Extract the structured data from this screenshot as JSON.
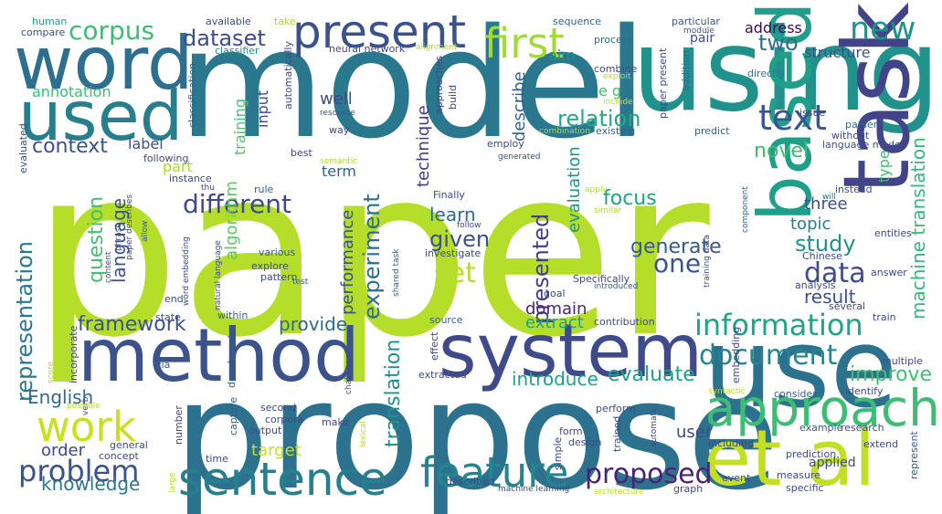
{
  "word_cloud": {
    "words": [
      {
        "text": "paper",
        "color": "#b5de2b"
      },
      {
        "text": "model",
        "color": "#2a788e"
      },
      {
        "text": "propose",
        "color": "#2c728e"
      },
      {
        "text": "using",
        "color": "#21918c"
      },
      {
        "text": "use",
        "color": "#2c728e"
      },
      {
        "text": "method",
        "color": "#3b528b"
      },
      {
        "text": "system",
        "color": "#3e4a89"
      },
      {
        "text": "word",
        "color": "#2e6e8e"
      },
      {
        "text": "used",
        "color": "#277f8e"
      },
      {
        "text": "task",
        "color": "#414487"
      },
      {
        "text": "based",
        "color": "#1f9e89"
      },
      {
        "text": "et al",
        "color": "#c2df23"
      },
      {
        "text": "approach",
        "color": "#3dbc74"
      },
      {
        "text": "sentence",
        "color": "#277f8e"
      },
      {
        "text": "feature",
        "color": "#25848e"
      },
      {
        "text": "present",
        "color": "#3b528b"
      },
      {
        "text": "first",
        "color": "#a2da37"
      },
      {
        "text": "new",
        "color": "#21918c"
      },
      {
        "text": "text",
        "color": "#39568c"
      },
      {
        "text": "work",
        "color": "#c8e020"
      },
      {
        "text": "information",
        "color": "#20a486"
      },
      {
        "text": "problem",
        "color": "#3b528b"
      },
      {
        "text": "proposed",
        "color": "#482475"
      },
      {
        "text": "data",
        "color": "#3e4c8a"
      },
      {
        "text": "document",
        "color": "#25848e"
      },
      {
        "text": "framework",
        "color": "#3b528b"
      },
      {
        "text": "corpus",
        "color": "#3dbc74"
      },
      {
        "text": "dataset",
        "color": "#3e4c8a"
      },
      {
        "text": "two",
        "color": "#2e6e8e"
      },
      {
        "text": "context",
        "color": "#3b528b"
      },
      {
        "text": "different",
        "color": "#3e4a89"
      },
      {
        "text": "representation",
        "color": "#2a788e"
      },
      {
        "text": "relation",
        "color": "#23a884"
      },
      {
        "text": "one",
        "color": "#39568c"
      },
      {
        "text": "set",
        "color": "#b5de2b"
      },
      {
        "text": "given",
        "color": "#3b528b"
      },
      {
        "text": "study",
        "color": "#21918c"
      },
      {
        "text": "presented",
        "color": "#433e85"
      },
      {
        "text": "experiment",
        "color": "#2e6e8e"
      },
      {
        "text": "question",
        "color": "#44bf70"
      },
      {
        "text": "language",
        "color": "#3b528b"
      },
      {
        "text": "machine translation",
        "color": "#35b779"
      },
      {
        "text": "novel",
        "color": "#3dbc74"
      },
      {
        "text": "translation",
        "color": "#21918c"
      },
      {
        "text": "knowledge",
        "color": "#2a788e"
      },
      {
        "text": "English",
        "color": "#31688e"
      },
      {
        "text": "result",
        "color": "#3b528b"
      },
      {
        "text": "improve",
        "color": "#44bf70"
      },
      {
        "text": "evaluate",
        "color": "#1fa187"
      },
      {
        "text": "introduce",
        "color": "#1fa187"
      },
      {
        "text": "generate",
        "color": "#38598c"
      },
      {
        "text": "learn",
        "color": "#31688e"
      },
      {
        "text": "focus",
        "color": "#20a486"
      },
      {
        "text": "domain",
        "color": "#482677"
      },
      {
        "text": "extract",
        "color": "#1f9e89"
      },
      {
        "text": "provide",
        "color": "#31688e"
      },
      {
        "text": "target",
        "color": "#c2df23"
      },
      {
        "text": "order",
        "color": "#3e4a89"
      },
      {
        "text": "user",
        "color": "#3e4a89"
      },
      {
        "text": "three",
        "color": "#3e4c8a"
      },
      {
        "text": "topic",
        "color": "#277f8e"
      },
      {
        "text": "annotation",
        "color": "#3dbc74"
      },
      {
        "text": "label",
        "color": "#3b528b"
      },
      {
        "text": "part",
        "color": "#a8db34"
      },
      {
        "text": "term",
        "color": "#35608d"
      },
      {
        "text": "performance",
        "color": "#3b528b"
      },
      {
        "text": "technique",
        "color": "#443983"
      },
      {
        "text": "describe",
        "color": "#35608d"
      },
      {
        "text": "training",
        "color": "#4ec36b"
      },
      {
        "text": "input",
        "color": "#3e4a89"
      },
      {
        "text": "algorithm",
        "color": "#5ec962"
      },
      {
        "text": "evaluation",
        "color": "#21918c"
      },
      {
        "text": "well",
        "color": "#3e4c8a"
      },
      {
        "text": "address",
        "color": "#450559"
      },
      {
        "text": "structure",
        "color": "#3b528b"
      },
      {
        "text": "aim",
        "color": "#21918c"
      },
      {
        "text": "e g",
        "color": "#3dbc74"
      },
      {
        "text": "pair",
        "color": "#3b528b"
      },
      {
        "text": "applied",
        "color": "#3e4c8a"
      },
      {
        "text": "type",
        "color": "#3dbc74"
      },
      {
        "text": "human",
        "color": "#1f9e89"
      },
      {
        "text": "compare",
        "color": "#3b528b"
      },
      {
        "text": "available",
        "color": "#3e4c8a"
      },
      {
        "text": "take",
        "color": "#a8db34"
      },
      {
        "text": "sequence",
        "color": "#31688e"
      },
      {
        "text": "particular",
        "color": "#3b528b"
      },
      {
        "text": "module",
        "color": "#3b528b"
      },
      {
        "text": "neural network",
        "color": "#3e4a89"
      },
      {
        "text": "alignment",
        "color": "#a8db34"
      },
      {
        "text": "process",
        "color": "#31688e"
      },
      {
        "text": "classifier",
        "color": "#21918c"
      },
      {
        "text": "automatically",
        "color": "#3e4a89"
      },
      {
        "text": "combine",
        "color": "#3e4c8a"
      },
      {
        "text": "paper present",
        "color": "#3e4c8a"
      },
      {
        "text": "exploit",
        "color": "#b5de2b"
      },
      {
        "text": "addition",
        "color": "#31688e"
      },
      {
        "text": "include",
        "color": "#c2df23"
      },
      {
        "text": "directly",
        "color": "#2a788e"
      },
      {
        "text": "issue",
        "color": "#3e4c8a"
      },
      {
        "text": "without",
        "color": "#3e4c8a"
      },
      {
        "text": "parser",
        "color": "#2e6e8e"
      },
      {
        "text": "language model",
        "color": "#3b528b"
      },
      {
        "text": "evaluated",
        "color": "#3e4c8a"
      },
      {
        "text": "classification",
        "color": "#35608d"
      },
      {
        "text": "resource",
        "color": "#3b528b"
      },
      {
        "text": "build",
        "color": "#3e4a89"
      },
      {
        "text": "approaches",
        "color": "#3e4a89"
      },
      {
        "text": "way",
        "color": "#3e4a89"
      },
      {
        "text": "employ",
        "color": "#3e4a89"
      },
      {
        "text": "combination",
        "color": "#a8db34"
      },
      {
        "text": "existing",
        "color": "#35608d"
      },
      {
        "text": "predict",
        "color": "#35608d"
      },
      {
        "text": "best",
        "color": "#3e4a89"
      },
      {
        "text": "generated",
        "color": "#3e4a89"
      },
      {
        "text": "following",
        "color": "#3e4a89"
      },
      {
        "text": "semantic",
        "color": "#a8db34"
      },
      {
        "text": "instance",
        "color": "#3e4a89"
      },
      {
        "text": "thu",
        "color": "#3e4a89"
      },
      {
        "text": "rule",
        "color": "#35608d"
      },
      {
        "text": "Finally",
        "color": "#3e4a89"
      },
      {
        "text": "training data",
        "color": "#3e4a89"
      },
      {
        "text": "component",
        "color": "#35608d"
      },
      {
        "text": "instead",
        "color": "#3e4c8a"
      },
      {
        "text": "will",
        "color": "#31688e"
      },
      {
        "text": "apply",
        "color": "#b5de2b"
      },
      {
        "text": "similar",
        "color": "#a8db34"
      },
      {
        "text": "candidate",
        "color": "#b5de2b"
      },
      {
        "text": "phrase",
        "color": "#3e4a89"
      },
      {
        "text": "paper describes",
        "color": "#3e4a89"
      },
      {
        "text": "allow",
        "color": "#35608d"
      },
      {
        "text": "follow",
        "color": "#3e4a89"
      },
      {
        "text": "investigate",
        "color": "#3e4a89"
      },
      {
        "text": "content",
        "color": "#3e4a89"
      },
      {
        "text": "word embedding",
        "color": "#3e4a89"
      },
      {
        "text": "natural language",
        "color": "#3e4a89"
      },
      {
        "text": "various",
        "color": "#35608d"
      },
      {
        "text": "explore",
        "color": "#3e4a89"
      },
      {
        "text": "pattern",
        "color": "#3e4a89"
      },
      {
        "text": "test",
        "color": "#35608d"
      },
      {
        "text": "shared task",
        "color": "#35608d"
      },
      {
        "text": "quality",
        "color": "#b5de2b"
      },
      {
        "text": "Specifically",
        "color": "#3e4a89"
      },
      {
        "text": "introduced",
        "color": "#35608d"
      },
      {
        "text": "entities",
        "color": "#3e4a89"
      },
      {
        "text": "Chinese",
        "color": "#3e4a89"
      },
      {
        "text": "answer",
        "color": "#3e4a89"
      },
      {
        "text": "analysis",
        "color": "#3e4a89"
      },
      {
        "text": "several",
        "color": "#3e4a89"
      },
      {
        "text": "train",
        "color": "#3e4a89"
      },
      {
        "text": "end",
        "color": "#3e4a89"
      },
      {
        "text": "within",
        "color": "#35608d"
      },
      {
        "text": "state",
        "color": "#3e4a89"
      },
      {
        "text": "goal",
        "color": "#3e4a89"
      },
      {
        "text": "source",
        "color": "#35608d"
      },
      {
        "text": "contribution",
        "color": "#3e4a89"
      },
      {
        "text": "effect",
        "color": "#3e4a89"
      },
      {
        "text": "score",
        "color": "#b5de2b"
      },
      {
        "text": "incorporate",
        "color": "#3e4a89"
      },
      {
        "text": "challenge",
        "color": "#3e4a89"
      },
      {
        "text": "via",
        "color": "#35608d"
      },
      {
        "text": "developed",
        "color": "#35608d"
      },
      {
        "text": "extracted",
        "color": "#3e4a89"
      },
      {
        "text": "multiple",
        "color": "#3e4a89"
      },
      {
        "text": "embedding",
        "color": "#3e4a89"
      },
      {
        "text": "consider",
        "color": "#35608d"
      },
      {
        "text": "identify",
        "color": "#3e4a89"
      },
      {
        "text": "syntactic",
        "color": "#b5de2b"
      },
      {
        "text": "verb",
        "color": "#3e4a89"
      },
      {
        "text": "possible",
        "color": "#b5de2b"
      },
      {
        "text": "second",
        "color": "#3e4a89"
      },
      {
        "text": "corpora",
        "color": "#3e4a89"
      },
      {
        "text": "output",
        "color": "#3e4a89"
      },
      {
        "text": "lexical",
        "color": "#b5de2b"
      },
      {
        "text": "make",
        "color": "#3e4a89"
      },
      {
        "text": "perform",
        "color": "#3e4a89"
      },
      {
        "text": "example",
        "color": "#35608d"
      },
      {
        "text": "research",
        "color": "#3e4a89"
      },
      {
        "text": "number",
        "color": "#3e4a89"
      },
      {
        "text": "capture",
        "color": "#35608d"
      },
      {
        "text": "form",
        "color": "#3e4a89"
      },
      {
        "text": "design",
        "color": "#3e4a89"
      },
      {
        "text": "trained",
        "color": "#3e4a89"
      },
      {
        "text": "automatic",
        "color": "#3e4a89"
      },
      {
        "text": "including",
        "color": "#3e4a89"
      },
      {
        "text": "prediction",
        "color": "#3e4a89"
      },
      {
        "text": "extend",
        "color": "#3e4a89"
      },
      {
        "text": "represent",
        "color": "#35608d"
      },
      {
        "text": "general",
        "color": "#3e4a89"
      },
      {
        "text": "concept",
        "color": "#3e4a89"
      },
      {
        "text": "time",
        "color": "#3e4a89"
      },
      {
        "text": "large",
        "color": "#b5de2b"
      },
      {
        "text": "simple",
        "color": "#3e4a89"
      },
      {
        "text": "described",
        "color": "#3e4a89"
      },
      {
        "text": "machine learning",
        "color": "#3e4a89"
      },
      {
        "text": "architecture",
        "color": "#b5de2b"
      },
      {
        "text": "measure",
        "color": "#3e4a89"
      },
      {
        "text": "event",
        "color": "#3e4a89"
      },
      {
        "text": "graph",
        "color": "#3e4a89"
      },
      {
        "text": "specific",
        "color": "#3e4a89"
      }
    ]
  }
}
